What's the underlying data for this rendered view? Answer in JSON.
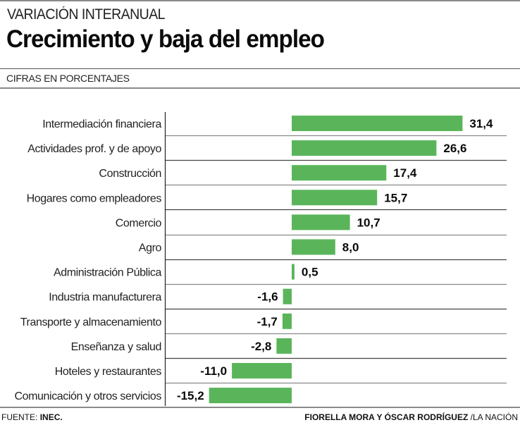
{
  "header": {
    "kicker": "VARIACIÓN INTERANUAL",
    "title": "Crecimiento y baja del empleo",
    "units": "CIFRAS EN PORCENTAJES"
  },
  "footer": {
    "source_prefix": "FUENTE:",
    "source_name": "INEC.",
    "credit_authors": "FIORELLA MORA Y ÓSCAR RODRÍGUEZ",
    "credit_outlet": "/LA NACIÓN"
  },
  "colors": {
    "bar": "#5ab55a",
    "text": "#111111",
    "rule": "#8a8a8a"
  },
  "chart_data": {
    "type": "bar",
    "orientation": "horizontal",
    "title": "Crecimiento y baja del empleo",
    "subtitle": "VARIACIÓN INTERANUAL",
    "xlabel": "",
    "ylabel": "",
    "units": "CIFRAS EN PORCENTAJES",
    "grid": false,
    "legend": "none",
    "xlim": [
      -15.2,
      31.4
    ],
    "categories": [
      "Intermediación financiera",
      "Actividades prof. y de apoyo",
      "Construcción",
      "Hogares como empleadores",
      "Comercio",
      "Agro",
      "Administración Pública",
      "Industria manufacturera",
      "Transporte y almacenamiento",
      "Enseñanza y salud",
      "Hoteles y restaurantes",
      "Comunicación y otros servicios"
    ],
    "values": [
      31.4,
      26.6,
      17.4,
      15.7,
      10.7,
      8.0,
      0.5,
      -1.6,
      -1.7,
      -2.8,
      -11.0,
      -15.2
    ],
    "value_labels": [
      "31,4",
      "26,6",
      "17,4",
      "15,7",
      "10,7",
      "8,0",
      "0,5",
      "-1,6",
      "-1,7",
      "-2,8",
      "-11,0",
      "-15,2"
    ]
  }
}
